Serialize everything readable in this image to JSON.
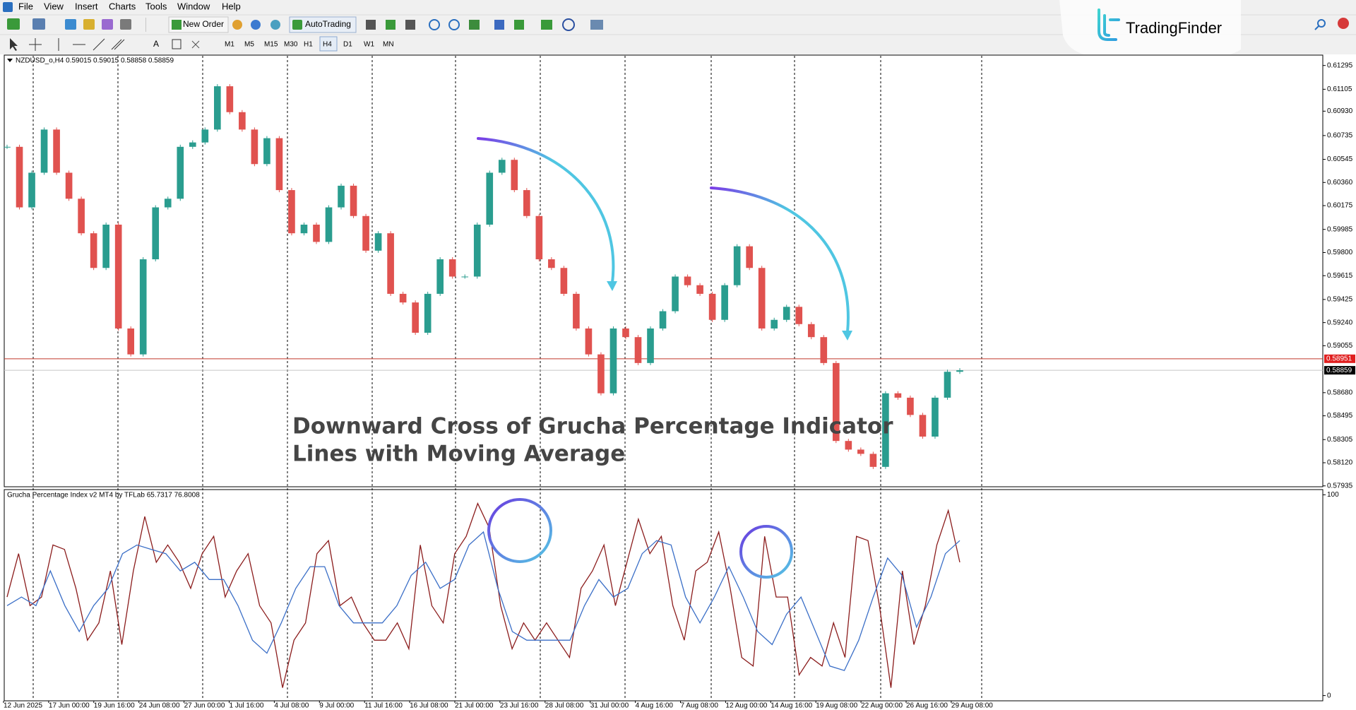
{
  "menu": [
    "File",
    "View",
    "Insert",
    "Charts",
    "Tools",
    "Window",
    "Help"
  ],
  "toolbar": {
    "new_order": "New Order",
    "auto_trading": "AutoTrading",
    "timeframes": [
      "M1",
      "M5",
      "M15",
      "M30",
      "H1",
      "H4",
      "D1",
      "W1",
      "MN"
    ]
  },
  "logo": "TradingFinder",
  "main_chart": {
    "header": "NZDUSD_o,H4 0.59015 0.59015 0.58858 0.58859",
    "up_color": "#2a9d8f",
    "down_color": "#e0524f",
    "ylim": [
      0.57928,
      0.61378
    ],
    "yticks": [
      0.61295,
      0.61105,
      {
        "value": 0.6093,
        "label": "0.60930"
      },
      0.60735,
      0.60545,
      {
        "value": 0.6036,
        "label": "0.60360"
      },
      0.60175,
      0.59985,
      {
        "value": 0.598,
        "label": "0.59800"
      },
      0.59615,
      0.59425,
      {
        "value": 0.5924,
        "label": "0.59240"
      },
      0.59055,
      {
        "value": 0.5868,
        "label": "0.58680"
      },
      0.58495,
      0.58305,
      {
        "value": 0.5812,
        "label": "0.58120"
      },
      0.57935
    ],
    "bid_price": 0.58951,
    "last_price": 0.58859,
    "closes": [
      0.60645,
      0.60161,
      0.60438,
      0.60783,
      0.60438,
      0.6023,
      0.59954,
      0.59677,
      0.60023,
      0.59193,
      0.58986,
      0.59746,
      0.60161,
      0.6023,
      0.60645,
      0.6068,
      0.60783,
      0.61129,
      0.60922,
      0.60783,
      0.60507,
      0.60714,
      0.60299,
      0.59954,
      0.60023,
      0.59885,
      0.60161,
      0.60334,
      0.60092,
      0.59815,
      0.59954,
      0.5947,
      0.59401,
      0.59159,
      0.5947,
      0.59746,
      0.59608,
      0.59608,
      0.60023,
      0.60438,
      0.60541,
      0.60299,
      0.60092,
      0.59746,
      0.59677,
      0.5947,
      0.59193,
      0.58986,
      0.58675,
      0.59193,
      0.59124,
      0.58917,
      0.59193,
      0.59331,
      0.59608,
      0.59539,
      0.5947,
      0.59262,
      0.59539,
      0.5985,
      0.59677,
      0.59193,
      0.59262,
      0.59366,
      0.59228,
      0.59124,
      0.58917,
      0.58294,
      0.58225,
      0.58191,
      0.58087,
      0.58675,
      0.5864,
      0.58502,
      0.58329,
      0.5864,
      0.58847,
      0.58859
    ],
    "annotation": [
      "Downward Cross of Grucha Percentage Indicator",
      "Lines with Moving Average"
    ]
  },
  "indicator": {
    "header": "Grucha Percentage Index v2 MT4 by TFLab 65.7317 76.8008",
    "ylim": [
      -2.6,
      102.6
    ],
    "yticks": [
      100,
      0
    ],
    "series": [
      {
        "color": "#8b1c1c",
        "values": [
          49.1,
          70.7,
          44.8,
          49.1,
          75.0,
          72.8,
          53.4,
          27.6,
          36.2,
          62.1,
          25.4,
          62.1,
          89.2,
          66.4,
          75.0,
          66.4,
          53.4,
          70.7,
          79.3,
          49.1,
          62.1,
          70.7,
          44.8,
          36.2,
          3.9,
          27.6,
          36.2,
          70.7,
          77.2,
          44.8,
          49.1,
          36.2,
          27.6,
          27.6,
          36.2,
          23.3,
          75.0,
          44.8,
          36.2,
          70.7,
          79.3,
          95.7,
          83.6,
          44.8,
          23.3,
          36.2,
          27.6,
          36.2,
          27.6,
          19.0,
          53.4,
          62.1,
          75.0,
          44.8,
          66.4,
          87.9,
          70.7,
          79.3,
          44.8,
          27.6,
          62.1,
          66.4,
          81.5,
          53.4,
          19.0,
          14.7,
          79.3,
          49.1,
          49.1,
          10.3,
          19.0,
          14.7,
          36.2,
          19.0,
          79.3,
          77.2,
          44.8,
          3.9,
          62.1,
          25.4,
          44.8,
          75.0,
          92.2,
          66.4
        ]
      },
      {
        "color": "#3b6fc7",
        "values": [
          44.8,
          49.1,
          44.8,
          62.1,
          44.8,
          31.9,
          44.8,
          53.4,
          70.7,
          75.0,
          72.8,
          70.7,
          62.1,
          66.4,
          57.8,
          57.8,
          44.8,
          27.6,
          21.1,
          36.2,
          53.4,
          64.2,
          64.2,
          44.8,
          36.2,
          36.2,
          36.2,
          44.8,
          59.9,
          66.4,
          53.4,
          57.8,
          75.0,
          81.5,
          53.4,
          31.9,
          27.6,
          27.6,
          27.6,
          27.6,
          44.8,
          57.8,
          49.1,
          53.4,
          70.7,
          77.2,
          75.0,
          49.1,
          36.2,
          49.1,
          64.2,
          49.1,
          31.9,
          25.4,
          40.5,
          49.1,
          31.9,
          14.7,
          12.5,
          27.6,
          49.1,
          68.5,
          59.9,
          34.1,
          49.1,
          70.7,
          77.2
        ]
      }
    ]
  },
  "dates": [
    "12 Jun 2025",
    "17 Jun 00:00",
    "19 Jun 16:00",
    "24 Jun 08:00",
    "27 Jun 00:00",
    "1 Jul 16:00",
    "4 Jul 08:00",
    "9 Jul 00:00",
    "11 Jul 16:00",
    "16 Jul 08:00",
    "21 Jul 00:00",
    "23 Jul 16:00",
    "28 Jul 08:00",
    "31 Jul 00:00",
    "4 Aug 16:00",
    "7 Aug 08:00",
    "12 Aug 00:00",
    "14 Aug 16:00",
    "19 Aug 08:00",
    "22 Aug 00:00",
    "26 Aug 16:00",
    "29 Aug 08:00"
  ]
}
